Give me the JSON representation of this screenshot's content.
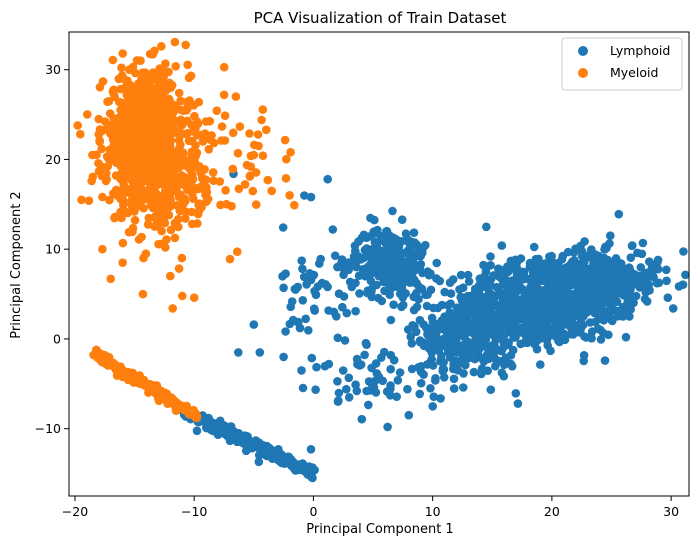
{
  "chart_data": {
    "type": "scatter",
    "title": "PCA Visualization of Train Dataset",
    "xlabel": "Principal Component 1",
    "ylabel": "Principal Component 2",
    "xlim": [
      -20.5,
      31.5
    ],
    "ylim": [
      -17.5,
      34.2
    ],
    "xticks": [
      -20,
      -10,
      0,
      10,
      20,
      30
    ],
    "yticks": [
      -10,
      0,
      10,
      20,
      30
    ],
    "grid": false,
    "legend_position": "top-right",
    "series": [
      {
        "name": "Lymphoid",
        "color": "#1f77b4",
        "clusters": [
          {
            "kind": "line",
            "from": [
              -11,
              -8
            ],
            "to": [
              0,
              -15
            ],
            "count": 220,
            "spread": 0.35
          },
          {
            "kind": "blob",
            "center": [
              19,
              4
            ],
            "sd": [
              4,
              2.5
            ],
            "count": 900,
            "rotate": 0.2
          },
          {
            "kind": "blob",
            "center": [
              24,
              6.5
            ],
            "sd": [
              2.5,
              1.5
            ],
            "count": 250,
            "rotate": 0.0
          },
          {
            "kind": "blob",
            "center": [
              13,
              0
            ],
            "sd": [
              2,
              2.5
            ],
            "count": 200,
            "rotate": 0.0
          },
          {
            "kind": "blob",
            "center": [
              6.5,
              8.5
            ],
            "sd": [
              1.5,
              2.0
            ],
            "count": 250,
            "rotate": 0.0
          },
          {
            "kind": "blob",
            "center": [
              1.5,
              5
            ],
            "sd": [
              2,
              4
            ],
            "count": 70,
            "rotate": 0.0
          },
          {
            "kind": "blob",
            "center": [
              6,
              -4
            ],
            "sd": [
              2.5,
              2.0
            ],
            "count": 60,
            "rotate": 0.0
          }
        ],
        "points": [
          [
            -6.7,
            18.4
          ],
          [
            1.2,
            17.8
          ],
          [
            -0.2,
            15.8
          ],
          [
            14.5,
            12.5
          ],
          [
            29.6,
            7.7
          ],
          [
            -6.3,
            -1.5
          ],
          [
            -4.5,
            -1.5
          ],
          [
            -2.5,
            -2
          ],
          [
            -1,
            -3.5
          ],
          [
            -0.2,
            -12.3
          ],
          [
            -5,
            1.6
          ],
          [
            -1.5,
            5.5
          ],
          [
            -2.5,
            5.7
          ],
          [
            3,
            -6.5
          ],
          [
            8,
            -8.5
          ],
          [
            10,
            -7.5
          ],
          [
            26.5,
            2.5
          ],
          [
            24.9,
            11.5
          ],
          [
            15.8,
            10.4
          ]
        ]
      },
      {
        "name": "Myeloid",
        "color": "#ff7f0e",
        "clusters": [
          {
            "kind": "blob",
            "center": [
              -14,
              22
            ],
            "sd": [
              1.8,
              3.8
            ],
            "count": 900,
            "rotate": 0.0
          },
          {
            "kind": "blob",
            "center": [
              -12,
              17
            ],
            "sd": [
              2,
              3.5
            ],
            "count": 150,
            "rotate": 0.0
          },
          {
            "kind": "blob",
            "center": [
              -7,
              20
            ],
            "sd": [
              3,
              3
            ],
            "count": 60,
            "rotate": 0.0
          },
          {
            "kind": "line",
            "from": [
              -18.5,
              -1.5
            ],
            "to": [
              -9.7,
              -8.7
            ],
            "count": 180,
            "spread": 0.25
          }
        ],
        "points": [
          [
            -16,
            31.8
          ],
          [
            -14.5,
            31
          ],
          [
            -18.6,
            17.6
          ],
          [
            -18,
            24.5
          ],
          [
            -6.5,
            27
          ],
          [
            -3.5,
            16.5
          ],
          [
            -2,
            16
          ],
          [
            -1.6,
            14.9
          ],
          [
            -7,
            8.9
          ],
          [
            -11,
            4.8
          ],
          [
            -10,
            4.6
          ],
          [
            -11.8,
            3.4
          ],
          [
            -14.3,
            5
          ],
          [
            -16,
            8.5
          ],
          [
            -17,
            6.7
          ],
          [
            -17.7,
            10
          ],
          [
            -12,
            7
          ],
          [
            -2.3,
            17.9
          ],
          [
            -5,
            20.5
          ],
          [
            -4.6,
            21.5
          ]
        ]
      }
    ]
  }
}
